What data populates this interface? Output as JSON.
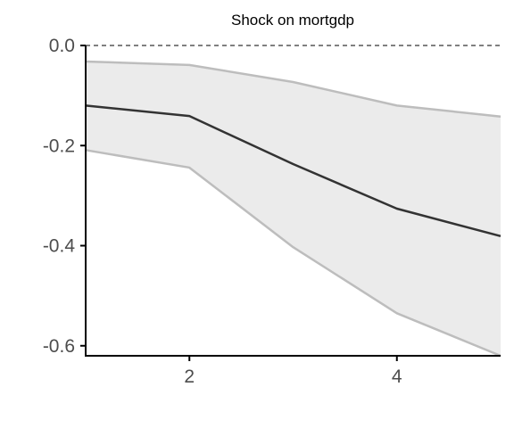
{
  "chart_data": {
    "type": "line",
    "title": "Shock on mortgdp",
    "xlabel": "",
    "ylabel": "",
    "x": [
      1,
      2,
      3,
      4,
      5
    ],
    "xlim": [
      1,
      5
    ],
    "ylim": [
      -0.62,
      0.0
    ],
    "x_ticks": [
      2,
      4
    ],
    "x_tick_labels": [
      "2",
      "4"
    ],
    "y_ticks": [
      0.0,
      -0.2,
      -0.4,
      -0.6
    ],
    "y_tick_labels": [
      "0.0",
      "-0.2",
      "-0.4",
      "-0.6"
    ],
    "series": [
      {
        "role": "estimate",
        "values": [
          -0.12,
          -0.141,
          -0.237,
          -0.326,
          -0.381
        ]
      },
      {
        "role": "upper_bound",
        "values": [
          -0.032,
          -0.039,
          -0.073,
          -0.12,
          -0.142
        ]
      },
      {
        "role": "lower_bound",
        "values": [
          -0.209,
          -0.244,
          -0.403,
          -0.535,
          -0.62
        ]
      }
    ],
    "reference_line": {
      "y": 0.0,
      "style": "dashed"
    },
    "grid": false,
    "legend": "none",
    "colors": {
      "estimate": "#333333",
      "band_fill": "#ebebeb",
      "band_edge": "#bdbdbd",
      "axis": "#000000",
      "tick_label": "#4d4d4d"
    }
  }
}
